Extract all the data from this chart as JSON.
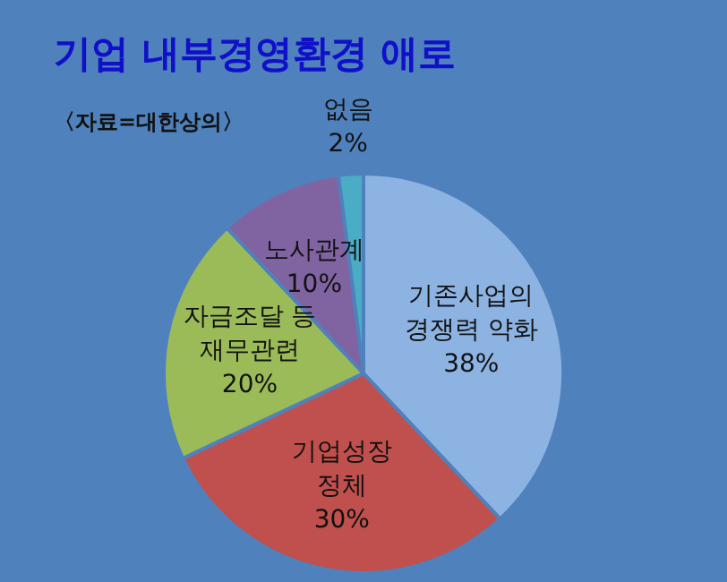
{
  "chart_data": {
    "type": "pie",
    "title": "기업 내부경영환경 애로",
    "annotations": [
      "〈자료=대한상의〉"
    ],
    "categories": [
      "기존사업의\n경쟁력 약화",
      "기업성장\n정체",
      "자금조달 등\n재무관련",
      "노사관계",
      "없음"
    ],
    "values": [
      38,
      30,
      20,
      10,
      2
    ],
    "value_labels": [
      "38%",
      "30%",
      "20%",
      "10%",
      "2%"
    ],
    "colors": [
      "#8db3e2",
      "#c0504d",
      "#9bbb59",
      "#8064a2",
      "#4bacc6"
    ],
    "legend": false
  }
}
